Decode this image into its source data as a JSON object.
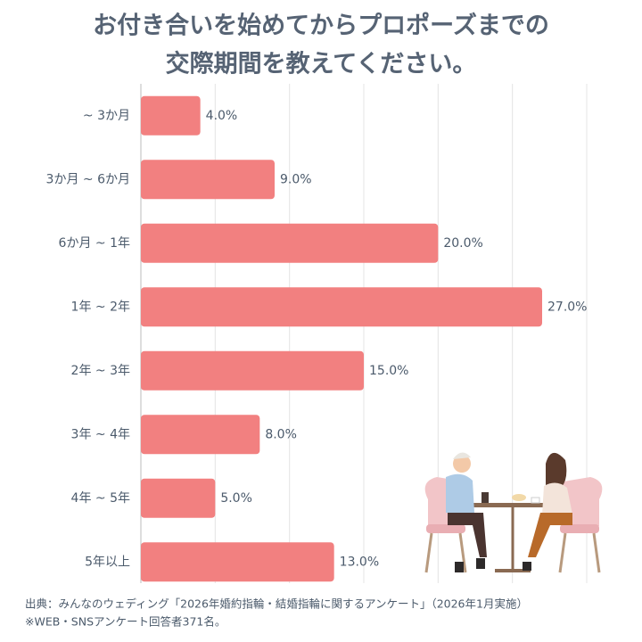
{
  "chart_data": {
    "type": "hbar",
    "title": [
      "お付き合いを始めてからプロポーズまでの",
      "交際期間を教えてください。"
    ],
    "categories": [
      "~ 3か月",
      "3か月 ~ 6か月",
      "6か月 ~ 1年",
      "1年 ~ 2年",
      "2年 ~ 3年",
      "3年 ~ 4年",
      "4年 ~ 5年",
      "5年以上"
    ],
    "values": [
      4.0,
      9.0,
      20.0,
      27.0,
      15.0,
      8.0,
      5.0,
      13.0
    ],
    "value_labels": [
      "4.0%",
      "9.0%",
      "20.0%",
      "27.0%",
      "15.0%",
      "8.0%",
      "5.0%",
      "13.0%"
    ],
    "color": "#f28080",
    "xlim": [
      0,
      30
    ],
    "xticks": [
      0,
      5,
      10,
      15,
      20,
      25,
      30
    ],
    "grid": true,
    "notes": [
      "出典：みんなのウェディング「2026年婚約指輪・結婚指輪に関するアンケート」（2026年1月実施）",
      "※WEB・SNSアンケート回答者371名。"
    ]
  }
}
